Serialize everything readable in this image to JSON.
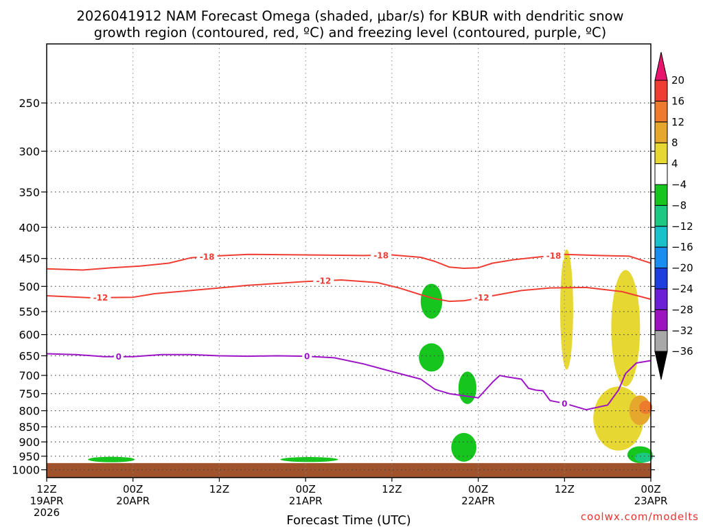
{
  "chart_data": {
    "type": "heatmap",
    "title_lines": [
      "2026041912 NAM Forecast Omega (shaded, μbar/s) for KBUR with dendritic snow",
      "growth region (contoured, red, ºC) and freezing level (contoured, purple, ºC)"
    ],
    "xlabel": "Forecast Time (UTC)",
    "ylabel": "",
    "x_range_hours": [
      0,
      84
    ],
    "y_range_hPa": [
      200,
      1030
    ],
    "y_scale": "log",
    "y_ticks": [
      250,
      300,
      350,
      400,
      450,
      500,
      550,
      600,
      650,
      700,
      750,
      800,
      850,
      900,
      950,
      1000
    ],
    "x_ticks": [
      {
        "hour": 0,
        "time": "12Z",
        "date": "19APR",
        "year": "2026"
      },
      {
        "hour": 12,
        "time": "00Z",
        "date": "20APR",
        "year": ""
      },
      {
        "hour": 24,
        "time": "12Z",
        "date": "",
        "year": ""
      },
      {
        "hour": 36,
        "time": "00Z",
        "date": "21APR",
        "year": ""
      },
      {
        "hour": 48,
        "time": "12Z",
        "date": "",
        "year": ""
      },
      {
        "hour": 60,
        "time": "00Z",
        "date": "22APR",
        "year": ""
      },
      {
        "hour": 72,
        "time": "12Z",
        "date": "",
        "year": ""
      },
      {
        "hour": 84,
        "time": "00Z",
        "date": "23APR",
        "year": ""
      }
    ],
    "grid": "dotted",
    "colorbar": {
      "levels": [
        20,
        16,
        12,
        8,
        4,
        -4,
        -8,
        -12,
        -16,
        -20,
        -24,
        -28,
        -32,
        -36
      ],
      "colors": [
        "#e8156e",
        "#ef3d33",
        "#ee7a2e",
        "#e5a72c",
        "#e6d732",
        "#ffffff",
        "#16c51d",
        "#1bc982",
        "#19c2c8",
        "#1a8ef0",
        "#1f3ee0",
        "#6b1fd6",
        "#9d13bf",
        "#a8a8a8",
        "#000000"
      ]
    },
    "series": [
      {
        "name": "-18",
        "color": "#ef3d33",
        "label_hours": [
          22.3,
          46.5,
          70.5
        ],
        "points": [
          [
            0,
            468
          ],
          [
            5,
            470
          ],
          [
            9,
            466
          ],
          [
            13,
            463
          ],
          [
            17,
            458
          ],
          [
            20,
            449
          ],
          [
            23,
            446
          ],
          [
            28,
            443
          ],
          [
            36,
            444
          ],
          [
            44,
            445
          ],
          [
            48,
            444
          ],
          [
            52,
            448
          ],
          [
            54,
            455
          ],
          [
            56,
            465
          ],
          [
            58,
            467
          ],
          [
            60,
            466
          ],
          [
            62,
            458
          ],
          [
            65,
            452
          ],
          [
            68,
            448
          ],
          [
            72,
            443
          ],
          [
            77,
            445
          ],
          [
            81,
            446
          ],
          [
            84,
            458
          ]
        ]
      },
      {
        "name": "-12",
        "color": "#ef3d33",
        "label_hours": [
          7.5,
          38.5,
          60.5
        ],
        "points": [
          [
            0,
            518
          ],
          [
            6,
            522
          ],
          [
            12,
            521
          ],
          [
            15,
            514
          ],
          [
            20,
            508
          ],
          [
            24,
            503
          ],
          [
            28,
            498
          ],
          [
            36,
            491
          ],
          [
            41,
            488
          ],
          [
            46,
            493
          ],
          [
            49,
            503
          ],
          [
            52,
            516
          ],
          [
            54,
            524
          ],
          [
            56,
            529
          ],
          [
            58,
            528
          ],
          [
            62,
            518
          ],
          [
            66,
            508
          ],
          [
            70,
            503
          ],
          [
            75,
            502
          ],
          [
            80,
            510
          ],
          [
            84,
            525
          ]
        ]
      },
      {
        "name": "0",
        "color": "#9c14c6",
        "label_hours": [
          10,
          36.2,
          72
        ],
        "points": [
          [
            0,
            645
          ],
          [
            4,
            647
          ],
          [
            8,
            652
          ],
          [
            12,
            652
          ],
          [
            16,
            647
          ],
          [
            20,
            647
          ],
          [
            24,
            650
          ],
          [
            28,
            651
          ],
          [
            32,
            650
          ],
          [
            36,
            651
          ],
          [
            40,
            655
          ],
          [
            44,
            670
          ],
          [
            48,
            690
          ],
          [
            52,
            710
          ],
          [
            54,
            738
          ],
          [
            56,
            750
          ],
          [
            58,
            756
          ],
          [
            60,
            762
          ],
          [
            61,
            740
          ],
          [
            62,
            718
          ],
          [
            63,
            700
          ],
          [
            64,
            704
          ],
          [
            66,
            710
          ],
          [
            67,
            735
          ],
          [
            68,
            740
          ],
          [
            69,
            742
          ],
          [
            70,
            770
          ],
          [
            72,
            778
          ],
          [
            75,
            797
          ],
          [
            78,
            783
          ],
          [
            79.5,
            740
          ],
          [
            80.5,
            695
          ],
          [
            82,
            668
          ],
          [
            84,
            662
          ]
        ]
      }
    ],
    "omega_cells": [
      {
        "value": -6,
        "hour": 9,
        "pressure_hPa": 962,
        "span_hours": 6.5,
        "span_hPa": 20
      },
      {
        "value": -6,
        "hour": 36.5,
        "pressure_hPa": 962,
        "span_hours": 8,
        "span_hPa": 18
      },
      {
        "value": -6,
        "hour": 53.5,
        "pressure_hPa": 530,
        "span_hours": 3,
        "span_hPa": 70
      },
      {
        "value": -6,
        "hour": 53.5,
        "pressure_hPa": 655,
        "span_hours": 3.5,
        "span_hPa": 70
      },
      {
        "value": -6,
        "hour": 58.5,
        "pressure_hPa": 735,
        "span_hours": 2.5,
        "span_hPa": 90
      },
      {
        "value": -6,
        "hour": 58,
        "pressure_hPa": 920,
        "span_hours": 3.5,
        "span_hPa": 100
      },
      {
        "value": 6,
        "hour": 72.3,
        "pressure_hPa": 560,
        "span_hours": 1.8,
        "span_hPa": 250
      },
      {
        "value": 6,
        "hour": 80.5,
        "pressure_hPa": 600,
        "span_hours": 4,
        "span_hPa": 260
      },
      {
        "value": 6,
        "hour": 79.5,
        "pressure_hPa": 830,
        "span_hours": 7,
        "span_hPa": 200
      },
      {
        "value": 10,
        "hour": 82.5,
        "pressure_hPa": 800,
        "span_hours": 3,
        "span_hPa": 90
      },
      {
        "value": 14,
        "hour": 83.3,
        "pressure_hPa": 790,
        "span_hours": 1.8,
        "span_hPa": 40
      },
      {
        "value": -6,
        "hour": 82.5,
        "pressure_hPa": 945,
        "span_hours": 3.5,
        "span_hPa": 60
      },
      {
        "value": -10,
        "hour": 83,
        "pressure_hPa": 955,
        "span_hours": 2.5,
        "span_hPa": 35
      }
    ],
    "surface_color": "#a0522d",
    "surface_pressure_hPa": 975,
    "credit": "coolwx.com/modelts"
  }
}
